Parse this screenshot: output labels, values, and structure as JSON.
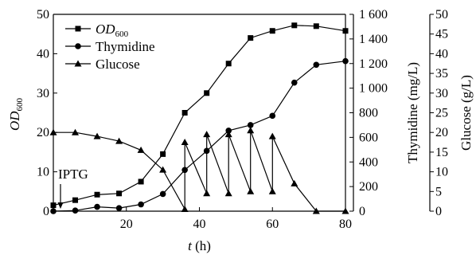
{
  "chart_data": {
    "type": "line",
    "title": "",
    "xlabel": {
      "main": "t",
      "unit": " (h)"
    },
    "x_ticks": [
      20,
      40,
      60,
      80
    ],
    "xlim": [
      0,
      80
    ],
    "axes": {
      "left": {
        "label": {
          "main": "OD",
          "sub": "600"
        },
        "ylim": [
          0,
          50
        ],
        "ticks": [
          0,
          10,
          20,
          30,
          40,
          50
        ]
      },
      "right1": {
        "label": "Thymidine (mg/L)",
        "ylim": [
          0,
          1600
        ],
        "ticks": [
          0,
          200,
          400,
          600,
          800,
          1000,
          1200,
          1400,
          1600
        ],
        "tick_labels": [
          "0",
          "200",
          "400",
          "600",
          "800",
          "1 000",
          "1 200",
          "1 400",
          "1 600"
        ]
      },
      "right2": {
        "label": "Glucose (g/L)",
        "ylim": [
          0,
          50
        ],
        "ticks": [
          0,
          5,
          10,
          15,
          20,
          25,
          30,
          35,
          40,
          45,
          50
        ]
      }
    },
    "series": [
      {
        "name": {
          "main": "OD",
          "sub": "600"
        },
        "axis": "left",
        "marker": "square",
        "x": [
          0,
          6,
          12,
          18,
          24,
          30,
          36,
          42,
          48,
          54,
          60,
          66,
          72,
          80
        ],
        "y": [
          1.5,
          2.8,
          4.2,
          4.5,
          7.5,
          14.5,
          25,
          30,
          37.5,
          44,
          45.8,
          47.2,
          47,
          45.8
        ]
      },
      {
        "name": "Thymidine",
        "axis": "right1",
        "marker": "circle",
        "x": [
          0,
          6,
          12,
          18,
          24,
          30,
          36,
          42,
          48,
          54,
          60,
          66,
          72,
          80
        ],
        "y": [
          0,
          5,
          35,
          25,
          55,
          140,
          335,
          490,
          655,
          700,
          775,
          1045,
          1190,
          1220
        ]
      },
      {
        "name": "Glucose",
        "axis": "right2",
        "marker": "triangle",
        "x": [
          0,
          6,
          12,
          18,
          24,
          30,
          36,
          36,
          42,
          42,
          48,
          48,
          54,
          54,
          60,
          60,
          66,
          72,
          80
        ],
        "y": [
          20,
          20,
          19,
          17.8,
          15.5,
          10.5,
          0.5,
          17.5,
          4.5,
          19.5,
          4.5,
          19.5,
          5,
          20.5,
          5,
          19,
          7,
          0,
          0
        ]
      }
    ],
    "annotations": [
      {
        "text": "IPTG",
        "x": 0
      }
    ],
    "legend": "top-left",
    "grid": false
  }
}
